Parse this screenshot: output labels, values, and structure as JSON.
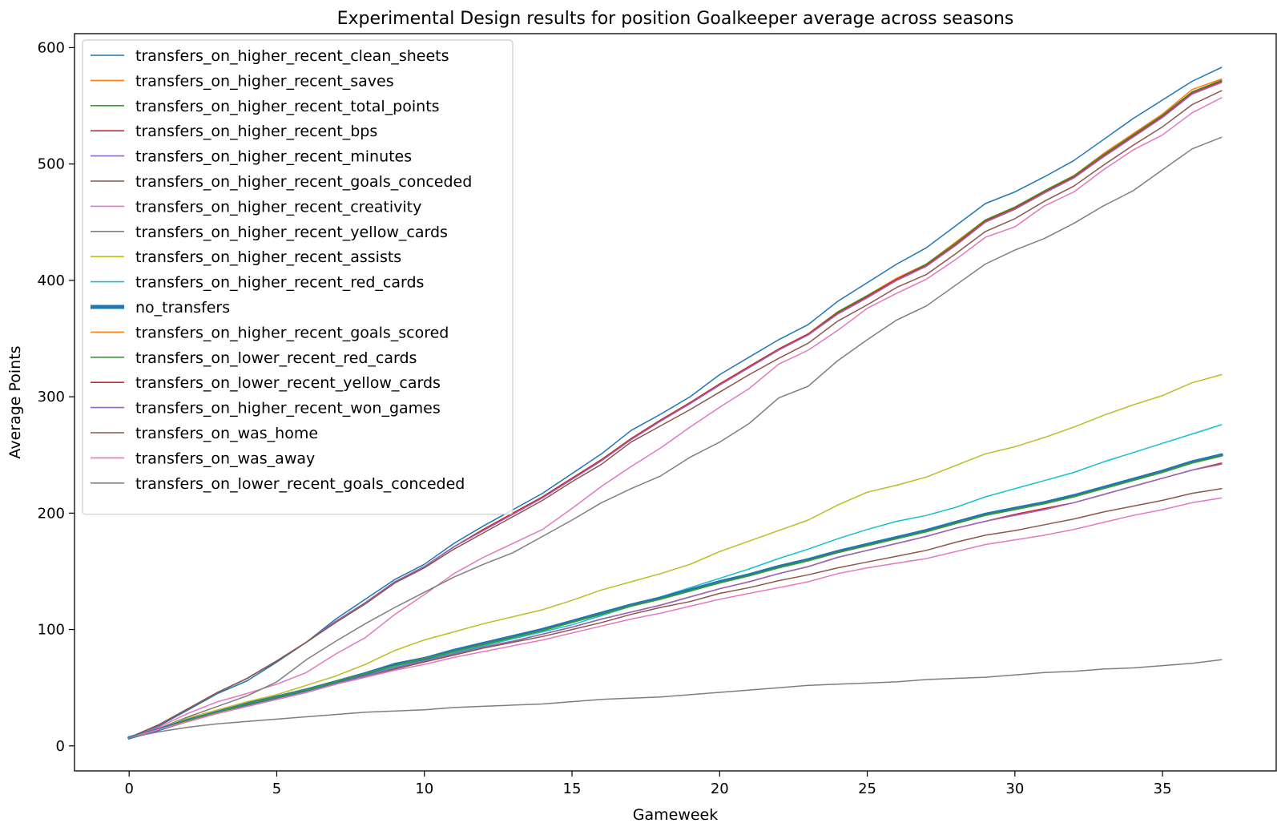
{
  "chart_data": {
    "type": "line",
    "title": "Experimental Design results for position Goalkeeper average across seasons",
    "xlabel": "Gameweek",
    "ylabel": "Average Points",
    "xlim": [
      -1.85,
      38.85
    ],
    "ylim": [
      -21.5,
      612
    ],
    "xticks": [
      0,
      5,
      10,
      15,
      20,
      25,
      30,
      35
    ],
    "yticks": [
      0,
      100,
      200,
      300,
      400,
      500,
      600
    ],
    "grid": false,
    "legend_position": "upper-left",
    "x": [
      0,
      1,
      2,
      3,
      4,
      5,
      6,
      7,
      8,
      9,
      10,
      11,
      12,
      13,
      14,
      15,
      16,
      17,
      18,
      19,
      20,
      21,
      22,
      23,
      24,
      25,
      26,
      27,
      28,
      29,
      30,
      31,
      32,
      33,
      34,
      35,
      36,
      37
    ],
    "series": [
      {
        "name": "transfers_on_higher_recent_clean_sheets",
        "color": "#1f77b4",
        "width": 1.5,
        "values": [
          6,
          17,
          31,
          45,
          56,
          72,
          89,
          109,
          126,
          143,
          156,
          174,
          189,
          203,
          217,
          234,
          251,
          271,
          285,
          300,
          319,
          334,
          349,
          362,
          382,
          398,
          414,
          428,
          447,
          466,
          476,
          489,
          503,
          521,
          539,
          555,
          571,
          583
        ]
      },
      {
        "name": "transfers_on_higher_recent_saves",
        "color": "#ff7f0e",
        "width": 1.5,
        "values": [
          7,
          18,
          32,
          46,
          58,
          73,
          89,
          107,
          123,
          141,
          154,
          171,
          186,
          200,
          214,
          230,
          246,
          264,
          280,
          295,
          311,
          326,
          341,
          354,
          373,
          387,
          402,
          414,
          433,
          452,
          463,
          477,
          490,
          509,
          526,
          543,
          564,
          573
        ]
      },
      {
        "name": "transfers_on_higher_recent_total_points",
        "color": "#2ca02c",
        "width": 1.5,
        "values": [
          7,
          18,
          32,
          46,
          58,
          73,
          89,
          107,
          123,
          141,
          154,
          171,
          186,
          200,
          214,
          230,
          246,
          264,
          280,
          295,
          311,
          326,
          341,
          354,
          373,
          387,
          401,
          414,
          432,
          452,
          463,
          477,
          490,
          508,
          525,
          542,
          562,
          572
        ]
      },
      {
        "name": "transfers_on_higher_recent_bps",
        "color": "#d62728",
        "width": 1.5,
        "values": [
          7,
          18,
          32,
          46,
          58,
          73,
          89,
          107,
          123,
          141,
          154,
          171,
          186,
          200,
          214,
          230,
          246,
          264,
          280,
          295,
          311,
          326,
          341,
          354,
          372,
          386,
          401,
          413,
          431,
          451,
          462,
          476,
          489,
          507,
          524,
          541,
          561,
          571
        ]
      },
      {
        "name": "transfers_on_higher_recent_minutes",
        "color": "#9467bd",
        "width": 1.5,
        "values": [
          7,
          18,
          32,
          46,
          58,
          73,
          89,
          107,
          123,
          141,
          154,
          171,
          185,
          199,
          213,
          229,
          245,
          263,
          279,
          294,
          310,
          325,
          340,
          353,
          371,
          385,
          400,
          412,
          430,
          450,
          461,
          475,
          488,
          506,
          523,
          540,
          560,
          570
        ]
      },
      {
        "name": "transfers_on_higher_recent_goals_conceded",
        "color": "#8c564b",
        "width": 1.5,
        "values": [
          7,
          18,
          32,
          46,
          58,
          73,
          89,
          106,
          122,
          140,
          153,
          169,
          183,
          197,
          211,
          227,
          242,
          261,
          275,
          289,
          304,
          319,
          333,
          346,
          365,
          379,
          394,
          405,
          423,
          442,
          453,
          468,
          481,
          499,
          516,
          532,
          551,
          563
        ]
      },
      {
        "name": "transfers_on_higher_recent_creativity",
        "color": "#e377c2",
        "width": 1.5,
        "values": [
          7,
          16,
          28,
          38,
          45,
          53,
          63,
          79,
          93,
          113,
          130,
          148,
          162,
          174,
          186,
          204,
          223,
          240,
          256,
          274,
          291,
          307,
          328,
          340,
          357,
          376,
          389,
          401,
          418,
          437,
          446,
          464,
          476,
          495,
          512,
          525,
          544,
          557
        ]
      },
      {
        "name": "transfers_on_higher_recent_yellow_cards",
        "color": "#7f7f7f",
        "width": 1.5,
        "values": [
          7,
          15,
          25,
          34,
          43,
          55,
          74,
          90,
          105,
          119,
          132,
          145,
          156,
          166,
          180,
          194,
          209,
          221,
          232,
          248,
          261,
          277,
          299,
          309,
          331,
          349,
          366,
          378,
          396,
          414,
          426,
          436,
          449,
          464,
          477,
          495,
          513,
          523
        ]
      },
      {
        "name": "transfers_on_higher_recent_assists",
        "color": "#bcbd22",
        "width": 1.5,
        "values": [
          7,
          15,
          24,
          31,
          38,
          44,
          52,
          60,
          70,
          82,
          91,
          98,
          105,
          111,
          117,
          125,
          134,
          141,
          148,
          156,
          167,
          176,
          185,
          194,
          207,
          218,
          224,
          231,
          241,
          251,
          257,
          265,
          274,
          284,
          293,
          301,
          312,
          319
        ]
      },
      {
        "name": "transfers_on_higher_recent_red_cards",
        "color": "#17becf",
        "width": 1.5,
        "values": [
          7,
          14,
          22,
          29,
          36,
          42,
          48,
          55,
          61,
          68,
          74,
          80,
          86,
          92,
          98,
          104,
          112,
          120,
          128,
          136,
          144,
          152,
          161,
          169,
          178,
          186,
          193,
          198,
          205,
          214,
          221,
          228,
          235,
          244,
          252,
          260,
          268,
          276
        ]
      },
      {
        "name": "no_transfers",
        "color": "#1f77b4",
        "width": 4,
        "values": [
          7,
          14,
          22,
          29,
          36,
          42,
          48,
          55,
          62,
          70,
          75,
          82,
          88,
          94,
          100,
          107,
          114,
          121,
          127,
          134,
          141,
          147,
          154,
          160,
          167,
          173,
          179,
          185,
          192,
          199,
          204,
          209,
          215,
          222,
          229,
          236,
          244,
          250
        ]
      },
      {
        "name": "transfers_on_higher_recent_goals_scored",
        "color": "#ff7f0e",
        "width": 1.5,
        "values": [
          7,
          14,
          22,
          29,
          36,
          42,
          48,
          55,
          62,
          69,
          75,
          81,
          87,
          93,
          99,
          106,
          113,
          120,
          126,
          133,
          140,
          146,
          153,
          159,
          166,
          172,
          178,
          184,
          191,
          198,
          203,
          208,
          214,
          221,
          228,
          235,
          243,
          249
        ]
      },
      {
        "name": "transfers_on_lower_recent_red_cards",
        "color": "#2ca02c",
        "width": 1.5,
        "values": [
          7,
          14,
          22,
          29,
          36,
          42,
          48,
          55,
          62,
          69,
          75,
          81,
          87,
          93,
          99,
          106,
          113,
          120,
          126,
          133,
          140,
          146,
          153,
          159,
          166,
          172,
          178,
          184,
          191,
          198,
          203,
          208,
          214,
          221,
          228,
          235,
          243,
          249
        ]
      },
      {
        "name": "transfers_on_lower_recent_yellow_cards",
        "color": "#d62728",
        "width": 1.5,
        "values": [
          7,
          14,
          21,
          28,
          34,
          40,
          46,
          53,
          60,
          67,
          73,
          79,
          85,
          90,
          96,
          102,
          109,
          115,
          121,
          128,
          135,
          141,
          148,
          154,
          162,
          168,
          174,
          180,
          187,
          193,
          199,
          204,
          209,
          216,
          223,
          230,
          237,
          243
        ]
      },
      {
        "name": "transfers_on_higher_recent_won_games",
        "color": "#9467bd",
        "width": 1.5,
        "values": [
          7,
          14,
          21,
          28,
          34,
          40,
          46,
          53,
          60,
          67,
          73,
          79,
          85,
          90,
          96,
          102,
          109,
          115,
          121,
          128,
          135,
          141,
          148,
          154,
          162,
          168,
          174,
          180,
          187,
          193,
          198,
          203,
          209,
          216,
          223,
          230,
          237,
          242
        ]
      },
      {
        "name": "transfers_on_was_home",
        "color": "#8c564b",
        "width": 1.5,
        "values": [
          7,
          14,
          21,
          28,
          34,
          40,
          46,
          53,
          59,
          66,
          72,
          78,
          84,
          89,
          94,
          100,
          106,
          113,
          119,
          124,
          131,
          136,
          142,
          147,
          153,
          158,
          163,
          168,
          175,
          181,
          185,
          190,
          195,
          201,
          206,
          211,
          217,
          221
        ]
      },
      {
        "name": "transfers_on_was_away",
        "color": "#e377c2",
        "width": 1.5,
        "values": [
          7,
          14,
          21,
          28,
          34,
          40,
          46,
          53,
          59,
          65,
          70,
          76,
          81,
          86,
          91,
          97,
          103,
          109,
          114,
          120,
          126,
          131,
          136,
          141,
          148,
          153,
          157,
          161,
          167,
          173,
          177,
          181,
          186,
          192,
          198,
          203,
          209,
          213
        ]
      },
      {
        "name": "transfers_on_lower_recent_goals_conceded",
        "color": "#7f7f7f",
        "width": 1.5,
        "values": [
          7,
          12,
          16,
          19,
          21,
          23,
          25,
          27,
          29,
          30,
          31,
          33,
          34,
          35,
          36,
          38,
          40,
          41,
          42,
          44,
          46,
          48,
          50,
          52,
          53,
          54,
          55,
          57,
          58,
          59,
          61,
          63,
          64,
          66,
          67,
          69,
          71,
          74
        ]
      }
    ]
  }
}
